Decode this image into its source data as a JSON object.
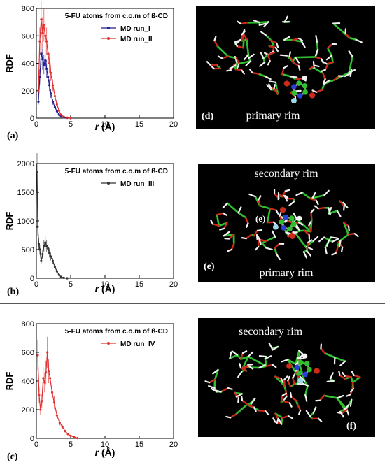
{
  "chart_data": [
    {
      "type": "line",
      "panel_label": "(a)",
      "title": "5-FU atoms from c.o.m of ß-CD",
      "xlabel_italic": "r",
      "xlabel_unit": "(Å)",
      "ylabel": "RDF",
      "xlim": [
        0,
        20
      ],
      "ylim": [
        0,
        800
      ],
      "xticks": [
        "0",
        "5",
        "10",
        "15",
        "20"
      ],
      "yticks": [
        "0",
        "200",
        "400",
        "600",
        "800"
      ],
      "legend_position": "top-right",
      "series": [
        {
          "name": "MD run_I",
          "color": "#1f1f8f",
          "x": [
            0.3,
            0.5,
            0.7,
            0.9,
            1.1,
            1.3,
            1.5,
            1.7,
            1.9,
            2.1,
            2.4,
            2.7,
            3.0,
            3.3,
            3.6,
            4.0,
            4.5,
            5.0
          ],
          "y": [
            120,
            300,
            470,
            430,
            390,
            420,
            360,
            300,
            240,
            180,
            120,
            80,
            50,
            25,
            12,
            5,
            2,
            0
          ]
        },
        {
          "name": "MD run_II",
          "color": "#e03030",
          "x": [
            0.3,
            0.5,
            0.7,
            0.9,
            1.1,
            1.3,
            1.5,
            1.7,
            1.9,
            2.1,
            2.4,
            2.7,
            3.0,
            3.3,
            3.6,
            4.0,
            4.5,
            5.0
          ],
          "y": [
            200,
            560,
            720,
            620,
            680,
            600,
            560,
            470,
            400,
            330,
            240,
            160,
            100,
            55,
            25,
            10,
            4,
            0
          ]
        }
      ]
    },
    {
      "type": "line",
      "panel_label": "(b)",
      "title": "5-FU atoms from c.o.m of ß-CD",
      "xlabel_italic": "r",
      "xlabel_unit": "(Å)",
      "ylabel": "RDF",
      "xlim": [
        0,
        20
      ],
      "ylim": [
        0,
        2000
      ],
      "xticks": [
        "0",
        "5",
        "10",
        "15",
        "20"
      ],
      "yticks": [
        "0",
        "500",
        "1000",
        "1500",
        "2000"
      ],
      "legend_position": "top-right",
      "series": [
        {
          "name": "MD run_III",
          "color": "#333333",
          "x": [
            0.1,
            0.2,
            0.35,
            0.5,
            0.7,
            0.9,
            1.1,
            1.3,
            1.5,
            1.7,
            1.9,
            2.1,
            2.4,
            2.7,
            3.0,
            3.3,
            3.6,
            4.0,
            4.5
          ],
          "y": [
            1850,
            900,
            600,
            500,
            300,
            420,
            560,
            620,
            560,
            520,
            440,
            380,
            300,
            200,
            120,
            60,
            25,
            8,
            0
          ]
        }
      ]
    },
    {
      "type": "line",
      "panel_label": "(c)",
      "title": "5-FU atoms from c.o.m of ß-CD",
      "xlabel_italic": "r",
      "xlabel_unit": "(Å)",
      "ylabel": "RDF",
      "xlim": [
        0,
        20
      ],
      "ylim": [
        0,
        800
      ],
      "xticks": [
        "0",
        "5",
        "10",
        "15",
        "20"
      ],
      "yticks": [
        "0",
        "200",
        "400",
        "600",
        "800"
      ],
      "legend_position": "top-right",
      "series": [
        {
          "name": "MD run_IV",
          "color": "#e03030",
          "x": [
            0.2,
            0.4,
            0.6,
            0.8,
            1.0,
            1.2,
            1.4,
            1.6,
            1.8,
            2.0,
            2.3,
            2.6,
            3.0,
            3.4,
            3.8,
            4.2,
            4.6,
            5.0,
            5.5,
            6.0
          ],
          "y": [
            580,
            300,
            200,
            260,
            420,
            390,
            460,
            600,
            470,
            420,
            320,
            250,
            160,
            110,
            80,
            50,
            30,
            18,
            8,
            2
          ]
        }
      ]
    }
  ],
  "molecule_panels": [
    {
      "label": "(d)",
      "rim_labels": [
        "primary rim"
      ]
    },
    {
      "label": "(e)",
      "inner_label": "(e)",
      "rim_labels": [
        "secondary rim",
        "primary rim"
      ]
    },
    {
      "label": "(f)",
      "rim_labels": [
        "secondary rim"
      ]
    }
  ],
  "colors": {
    "carbon": "#2fbf2f",
    "oxygen": "#cc2a1a",
    "hydrogen": "#f2f2f2",
    "nitrogen": "#2a3fd6",
    "fluorine": "#9fd8e6",
    "background": "#000000"
  }
}
